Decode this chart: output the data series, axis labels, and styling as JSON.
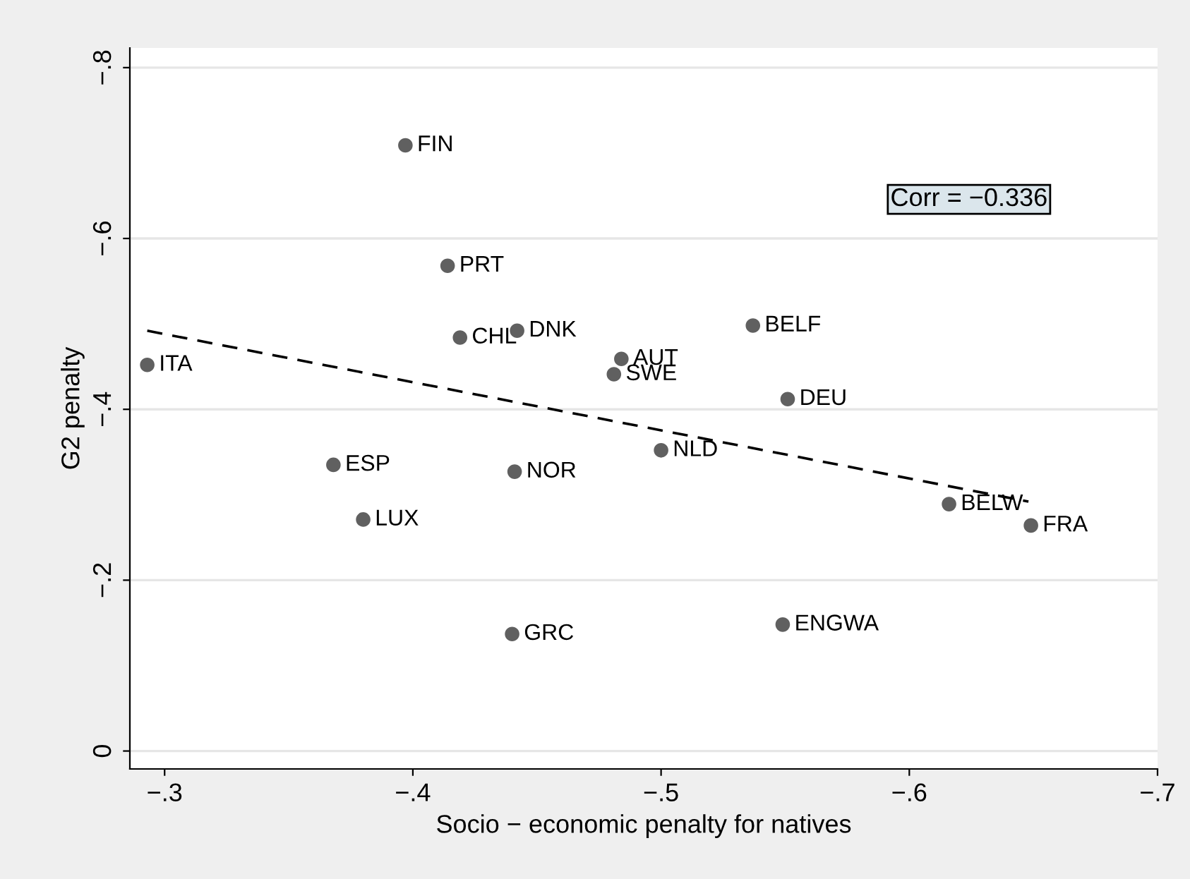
{
  "chart_data": {
    "type": "scatter",
    "xlabel": "Socio − economic penalty for natives",
    "ylabel": "G2 penalty",
    "xlim": [
      -0.286,
      -0.7
    ],
    "ylim": [
      0.021,
      -0.823
    ],
    "xticks": [
      {
        "value": -0.3,
        "label": "−.3"
      },
      {
        "value": -0.4,
        "label": "−.4"
      },
      {
        "value": -0.5,
        "label": "−.5"
      },
      {
        "value": -0.6,
        "label": "−.6"
      },
      {
        "value": -0.7,
        "label": "−.7"
      }
    ],
    "yticks": [
      0,
      {
        "value": -0.2,
        "label": "−.2"
      },
      {
        "value": -0.4,
        "label": "−.4"
      },
      {
        "value": -0.6,
        "label": "−.6"
      },
      {
        "value": -0.8,
        "label": "−.8"
      }
    ],
    "grid": "y",
    "legend": false,
    "marker": "circle",
    "series": [
      {
        "color": "#606060",
        "x": [
          -0.397,
          -0.414,
          -0.419,
          -0.442,
          -0.484,
          -0.481,
          -0.537,
          -0.293,
          -0.368,
          -0.441,
          -0.5,
          -0.551,
          -0.38,
          -0.616,
          -0.649,
          -0.44,
          -0.549
        ],
        "values": [
          -0.709,
          -0.568,
          -0.484,
          -0.492,
          -0.459,
          -0.441,
          -0.498,
          -0.452,
          -0.335,
          -0.327,
          -0.352,
          -0.412,
          -0.271,
          -0.289,
          -0.264,
          -0.137,
          -0.148
        ]
      },
      {
        "type": "line",
        "color": "#000000",
        "line_style": "dashed",
        "marker": "none",
        "x": [
          -0.293,
          -0.648
        ],
        "values": [
          -0.492,
          -0.292
        ]
      }
    ],
    "annotations": [
      {
        "text": "FIN",
        "x": -0.397,
        "y": -0.709
      },
      {
        "text": "PRT",
        "x": -0.414,
        "y": -0.568
      },
      {
        "text": "CHL",
        "x": -0.419,
        "y": -0.484
      },
      {
        "text": "DNK",
        "x": -0.442,
        "y": -0.492
      },
      {
        "text": "AUT",
        "x": -0.484,
        "y": -0.459
      },
      {
        "text": "SWE",
        "x": -0.481,
        "y": -0.441
      },
      {
        "text": "BELF",
        "x": -0.537,
        "y": -0.498
      },
      {
        "text": "ITA",
        "x": -0.293,
        "y": -0.452
      },
      {
        "text": "ESP",
        "x": -0.368,
        "y": -0.335
      },
      {
        "text": "NOR",
        "x": -0.441,
        "y": -0.327
      },
      {
        "text": "NLD",
        "x": -0.5,
        "y": -0.352
      },
      {
        "text": "DEU",
        "x": -0.551,
        "y": -0.412
      },
      {
        "text": "LUX",
        "x": -0.38,
        "y": -0.271
      },
      {
        "text": "BELW",
        "x": -0.616,
        "y": -0.289
      },
      {
        "text": "FRA",
        "x": -0.649,
        "y": -0.264
      },
      {
        "text": "GRC",
        "x": -0.44,
        "y": -0.137
      },
      {
        "text": "ENGWA",
        "x": -0.549,
        "y": -0.148
      },
      "Corr = −0.336"
    ]
  }
}
